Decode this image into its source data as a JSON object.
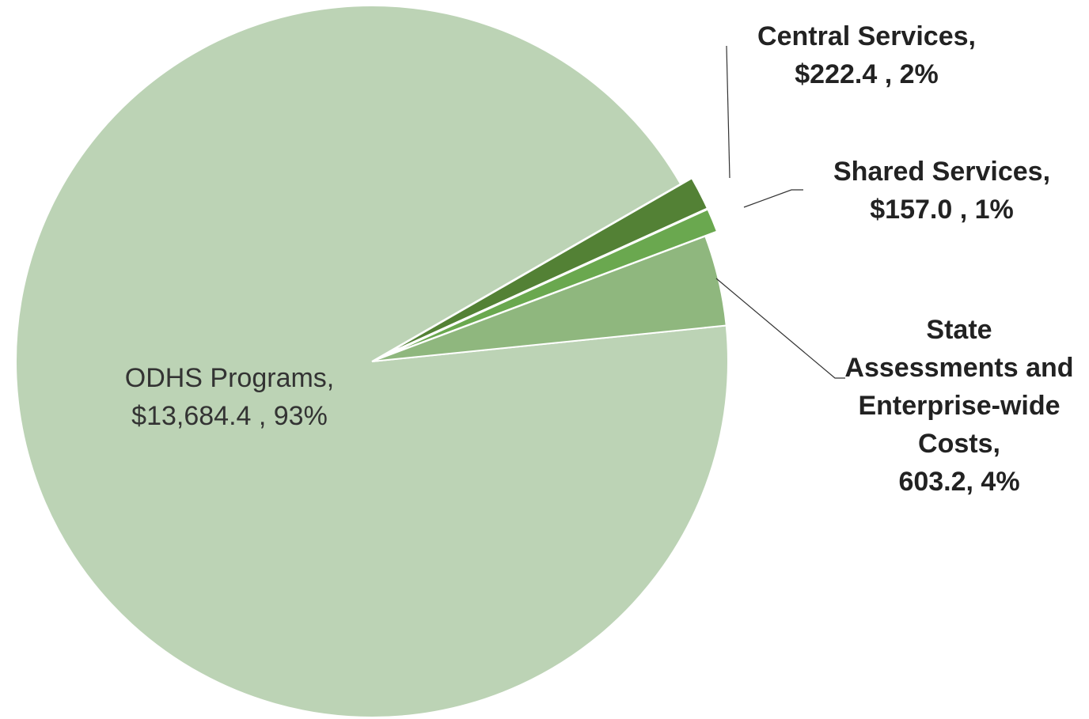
{
  "chart_data": {
    "type": "pie",
    "categories": [
      "ODHS Programs,",
      "Central Services,",
      "Shared Services,",
      "State Assessments and Enterprise-wide Costs,"
    ],
    "values": [
      13684.4,
      222.4,
      157.0,
      603.2
    ],
    "value_labels": [
      "$13,684.4 , 93%",
      "$222.4 , 2%",
      "$157.0 , 1%",
      "603.2, 4%"
    ],
    "colors": [
      "#bcd3b5",
      "#538135",
      "#6aa84f",
      "#8fb77e"
    ]
  }
}
